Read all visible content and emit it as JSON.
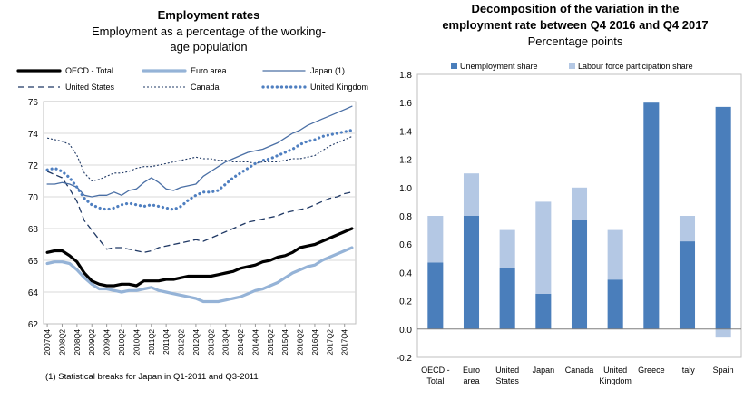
{
  "chart_data": [
    {
      "type": "line",
      "title": "Employment rates",
      "subtitle_lines": [
        "Employment as a percentage of the working-",
        "age population"
      ],
      "ylim": [
        62,
        76
      ],
      "yticks": [
        "62",
        "64",
        "66",
        "68",
        "70",
        "72",
        "74",
        "76"
      ],
      "x_labels": [
        "2007Q4",
        "2008Q2",
        "2008Q4",
        "2009Q2",
        "2009Q4",
        "2010Q2",
        "2010Q4",
        "2011Q2",
        "2011Q4",
        "2012Q2",
        "2012Q4",
        "2013Q2",
        "2013Q4",
        "2014Q2",
        "2014Q4",
        "2015Q2",
        "2015Q4",
        "2016Q2",
        "2016Q4",
        "2017Q2",
        "2017Q4"
      ],
      "grid": "horizontal",
      "legend_rows": [
        [
          "OECD - Total",
          "Euro area",
          "Japan (1)"
        ],
        [
          "United States",
          "Canada",
          "United Kingdom"
        ]
      ],
      "footnote": "(1) Statistical breaks for Japan in Q1-2011 and Q3-2011",
      "series": [
        {
          "name": "OECD - Total",
          "color": "#000000",
          "style": "solid-thick",
          "values": [
            66.5,
            66.6,
            66.6,
            66.3,
            65.9,
            65.2,
            64.7,
            64.5,
            64.4,
            64.4,
            64.5,
            64.5,
            64.4,
            64.7,
            64.7,
            64.7,
            64.8,
            64.8,
            64.9,
            65.0,
            65.0,
            65.0,
            65.0,
            65.1,
            65.2,
            65.3,
            65.5,
            65.6,
            65.7,
            65.9,
            66.0,
            66.2,
            66.3,
            66.5,
            66.8,
            66.9,
            67.0,
            67.2,
            67.4,
            67.6,
            67.8,
            68.0
          ]
        },
        {
          "name": "Euro area",
          "color": "#95b3d7",
          "style": "solid-thick",
          "values": [
            65.8,
            65.9,
            65.9,
            65.8,
            65.4,
            64.9,
            64.5,
            64.2,
            64.2,
            64.1,
            64.0,
            64.1,
            64.1,
            64.2,
            64.3,
            64.1,
            64.0,
            63.9,
            63.8,
            63.7,
            63.6,
            63.4,
            63.4,
            63.4,
            63.5,
            63.6,
            63.7,
            63.9,
            64.1,
            64.2,
            64.4,
            64.6,
            64.9,
            65.2,
            65.4,
            65.6,
            65.7,
            66.0,
            66.2,
            66.4,
            66.6,
            66.8
          ]
        },
        {
          "name": "Japan (1)",
          "color": "#4a6fa5",
          "style": "solid-thin",
          "values": [
            70.8,
            70.8,
            70.9,
            70.8,
            70.6,
            70.1,
            70.0,
            70.1,
            70.1,
            70.3,
            70.1,
            70.4,
            70.5,
            70.9,
            71.2,
            70.9,
            70.5,
            70.4,
            70.6,
            70.7,
            70.8,
            71.3,
            71.6,
            71.9,
            72.2,
            72.4,
            72.6,
            72.8,
            72.9,
            73.0,
            73.2,
            73.4,
            73.7,
            74.0,
            74.2,
            74.5,
            74.7,
            74.9,
            75.1,
            75.3,
            75.5,
            75.7
          ]
        },
        {
          "name": "United States",
          "color": "#1f3864",
          "style": "long-dash",
          "values": [
            71.6,
            71.4,
            71.2,
            70.5,
            69.7,
            68.5,
            67.9,
            67.3,
            66.7,
            66.8,
            66.8,
            66.7,
            66.6,
            66.5,
            66.6,
            66.8,
            66.9,
            67.0,
            67.1,
            67.2,
            67.3,
            67.2,
            67.4,
            67.6,
            67.8,
            68.0,
            68.2,
            68.4,
            68.5,
            68.6,
            68.7,
            68.8,
            69.0,
            69.1,
            69.2,
            69.3,
            69.5,
            69.7,
            69.9,
            70.0,
            70.2,
            70.3
          ]
        },
        {
          "name": "Canada",
          "color": "#1f3864",
          "style": "short-dash",
          "values": [
            73.7,
            73.6,
            73.5,
            73.3,
            72.6,
            71.5,
            71.0,
            71.1,
            71.3,
            71.5,
            71.5,
            71.6,
            71.8,
            71.9,
            71.9,
            72.0,
            72.1,
            72.2,
            72.3,
            72.4,
            72.5,
            72.4,
            72.4,
            72.3,
            72.3,
            72.2,
            72.2,
            72.2,
            72.1,
            72.2,
            72.2,
            72.2,
            72.3,
            72.4,
            72.4,
            72.5,
            72.6,
            72.9,
            73.2,
            73.4,
            73.6,
            73.8
          ]
        },
        {
          "name": "United Kingdom",
          "color": "#4f7fc0",
          "style": "dotted",
          "values": [
            71.7,
            71.8,
            71.6,
            71.2,
            70.6,
            69.9,
            69.5,
            69.3,
            69.2,
            69.3,
            69.5,
            69.6,
            69.5,
            69.4,
            69.5,
            69.4,
            69.3,
            69.2,
            69.4,
            69.8,
            70.1,
            70.3,
            70.3,
            70.4,
            70.8,
            71.2,
            71.5,
            71.8,
            72.1,
            72.3,
            72.4,
            72.6,
            72.8,
            73.0,
            73.3,
            73.5,
            73.6,
            73.8,
            73.9,
            74.0,
            74.1,
            74.2
          ]
        }
      ]
    },
    {
      "type": "bar",
      "stacked": true,
      "title_lines": [
        "Decomposition of the variation in the",
        "employment rate between Q4 2016 and Q4 2017"
      ],
      "subtitle": "Percentage points",
      "ylim": [
        -0.2,
        1.8
      ],
      "yticks": [
        "-0.2",
        "0.0",
        "0.2",
        "0.4",
        "0.6",
        "0.8",
        "1.0",
        "1.2",
        "1.4",
        "1.6",
        "1.8"
      ],
      "categories": [
        [
          "OECD -",
          "Total"
        ],
        [
          "Euro",
          "area"
        ],
        [
          "United",
          "States"
        ],
        [
          "Japan"
        ],
        [
          "Canada"
        ],
        [
          "United",
          "Kingdom"
        ],
        [
          "Greece"
        ],
        [
          "Italy"
        ],
        [
          "Spain"
        ]
      ],
      "series": [
        {
          "name": "Unemployment share",
          "color": "#4a7ebb",
          "values": [
            0.47,
            0.8,
            0.43,
            0.25,
            0.77,
            0.35,
            1.6,
            0.62,
            1.57
          ]
        },
        {
          "name": "Labour force participation share",
          "color": "#b4c8e4",
          "values": [
            0.33,
            0.3,
            0.27,
            0.65,
            0.23,
            0.35,
            0.0,
            0.18,
            -0.06
          ]
        }
      ]
    }
  ]
}
